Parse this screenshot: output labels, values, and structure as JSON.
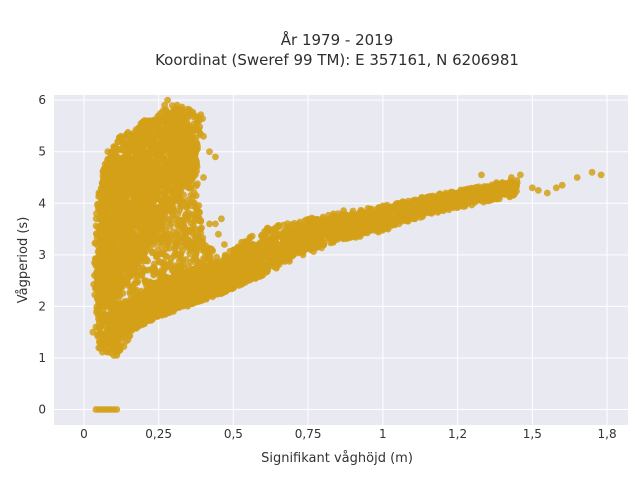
{
  "chart_data": {
    "type": "scatter",
    "title": [
      "År 1979 - 2019",
      "Koordinat (Sweref 99 TM): E 357161, N 6206981"
    ],
    "xlabel": "Signifikant våghöjd (m)",
    "ylabel": "Vågperiod (s)",
    "xlim": [
      -0.1,
      1.82
    ],
    "ylim": [
      -0.3,
      6.1
    ],
    "x_ticks": [
      0,
      0.25,
      0.5,
      0.75,
      1,
      1.25,
      1.5,
      1.75
    ],
    "x_tick_labels": [
      "0",
      "0,25",
      "0,5",
      "0,75",
      "1",
      "1,2",
      "1,5",
      "1,8"
    ],
    "y_ticks": [
      0,
      1,
      2,
      3,
      4,
      5,
      6
    ],
    "y_tick_labels": [
      "0",
      "1",
      "2",
      "3",
      "4",
      "5",
      "6"
    ],
    "grid": true,
    "colors": {
      "marker": "#d4a017",
      "plot_bg": "#e9e9f1",
      "grid": "#ffffff"
    },
    "series": [
      {
        "points": [
          [
            0.04,
            0
          ],
          [
            0.05,
            0
          ],
          [
            0.06,
            0
          ],
          [
            0.07,
            0
          ],
          [
            0.08,
            0
          ],
          [
            0.09,
            0
          ],
          [
            0.1,
            0
          ],
          [
            0.11,
            0
          ],
          [
            0.03,
            1.5
          ],
          [
            0.04,
            1.6
          ],
          [
            0.05,
            2.2
          ],
          [
            0.05,
            2.6
          ],
          [
            0.04,
            2.9
          ],
          [
            0.05,
            1.2
          ],
          [
            0.06,
            4.2
          ],
          [
            0.07,
            4.5
          ],
          [
            0.08,
            4.8
          ],
          [
            0.09,
            4.9
          ],
          [
            0.1,
            5.1
          ],
          [
            0.08,
            5.0
          ],
          [
            0.09,
            1.1
          ],
          [
            0.1,
            1.05
          ],
          [
            0.11,
            1.05
          ],
          [
            0.12,
            1.15
          ],
          [
            0.2,
            5.5
          ],
          [
            0.22,
            5.6
          ],
          [
            0.25,
            5.7
          ],
          [
            0.27,
            5.9
          ],
          [
            0.28,
            6.0
          ],
          [
            0.3,
            5.8
          ],
          [
            0.33,
            5.8
          ],
          [
            0.35,
            5.7
          ],
          [
            0.38,
            5.6
          ],
          [
            0.4,
            5.3
          ],
          [
            0.42,
            5.0
          ],
          [
            0.44,
            4.9
          ],
          [
            0.4,
            4.5
          ],
          [
            0.42,
            3.6
          ],
          [
            0.44,
            3.6
          ],
          [
            0.46,
            3.7
          ],
          [
            0.47,
            3.2
          ],
          [
            0.45,
            3.4
          ],
          [
            0.38,
            3.4
          ],
          [
            0.5,
            3.0
          ],
          [
            0.55,
            3.1
          ],
          [
            0.6,
            3.3
          ],
          [
            0.65,
            3.4
          ],
          [
            0.7,
            3.5
          ],
          [
            0.75,
            3.6
          ],
          [
            0.8,
            3.7
          ],
          [
            0.85,
            3.8
          ],
          [
            0.9,
            3.85
          ],
          [
            0.95,
            3.9
          ],
          [
            1.0,
            3.95
          ],
          [
            1.05,
            4.0
          ],
          [
            1.1,
            4.05
          ],
          [
            1.15,
            4.1
          ],
          [
            1.2,
            4.15
          ],
          [
            1.25,
            4.2
          ],
          [
            1.3,
            4.25
          ],
          [
            1.35,
            4.3
          ],
          [
            1.38,
            4.4
          ],
          [
            1.4,
            4.4
          ],
          [
            1.43,
            4.5
          ],
          [
            1.46,
            4.55
          ],
          [
            1.5,
            4.3
          ],
          [
            1.52,
            4.25
          ],
          [
            1.55,
            4.2
          ],
          [
            1.58,
            4.3
          ],
          [
            1.6,
            4.35
          ],
          [
            1.65,
            4.5
          ],
          [
            1.7,
            4.6
          ],
          [
            1.73,
            4.55
          ],
          [
            1.33,
            4.55
          ],
          [
            0.5,
            2.4
          ],
          [
            0.45,
            2.3
          ],
          [
            0.4,
            2.2
          ],
          [
            0.35,
            2.1
          ],
          [
            0.3,
            2.0
          ],
          [
            0.25,
            1.9
          ],
          [
            0.2,
            1.8
          ],
          [
            0.15,
            1.7
          ],
          [
            0.55,
            2.6
          ],
          [
            0.6,
            2.8
          ],
          [
            0.7,
            3.0
          ],
          [
            0.8,
            3.2
          ],
          [
            0.9,
            3.4
          ],
          [
            1.0,
            3.5
          ]
        ]
      }
    ],
    "regions": [
      {
        "kind": "poly",
        "count": 2200,
        "pts": [
          [
            0.04,
            1.25
          ],
          [
            0.06,
            1.1
          ],
          [
            0.12,
            1.1
          ],
          [
            0.17,
            1.5
          ],
          [
            0.25,
            1.8
          ],
          [
            0.4,
            2.1
          ],
          [
            0.5,
            2.35
          ],
          [
            0.6,
            2.6
          ],
          [
            0.72,
            2.95
          ],
          [
            0.85,
            3.25
          ],
          [
            1.0,
            3.45
          ],
          [
            1.15,
            3.8
          ],
          [
            1.3,
            4.0
          ],
          [
            1.45,
            4.2
          ],
          [
            1.45,
            4.4
          ],
          [
            1.3,
            4.3
          ],
          [
            1.15,
            4.15
          ],
          [
            1.0,
            3.95
          ],
          [
            0.85,
            3.85
          ],
          [
            0.7,
            3.65
          ],
          [
            0.6,
            3.5
          ],
          [
            0.5,
            3.15
          ],
          [
            0.45,
            3.0
          ],
          [
            0.4,
            3.3
          ],
          [
            0.38,
            4.2
          ],
          [
            0.38,
            5.0
          ],
          [
            0.4,
            5.7
          ],
          [
            0.3,
            5.95
          ],
          [
            0.2,
            5.6
          ],
          [
            0.15,
            5.3
          ],
          [
            0.1,
            5.0
          ],
          [
            0.06,
            4.6
          ],
          [
            0.04,
            3.8
          ],
          [
            0.03,
            2.0
          ]
        ]
      },
      {
        "kind": "poly",
        "count": 1400,
        "pts": [
          [
            0.06,
            1.2
          ],
          [
            0.15,
            1.5
          ],
          [
            0.25,
            1.8
          ],
          [
            0.35,
            2.0
          ],
          [
            0.5,
            2.35
          ],
          [
            0.6,
            2.6
          ],
          [
            0.6,
            3.05
          ],
          [
            0.5,
            2.95
          ],
          [
            0.35,
            2.7
          ],
          [
            0.25,
            2.5
          ],
          [
            0.18,
            2.2
          ],
          [
            0.1,
            2.0
          ]
        ]
      },
      {
        "kind": "poly",
        "count": 1400,
        "pts": [
          [
            0.05,
            2.0
          ],
          [
            0.1,
            2.0
          ],
          [
            0.2,
            3.0
          ],
          [
            0.3,
            4.0
          ],
          [
            0.38,
            4.7
          ],
          [
            0.38,
            5.4
          ],
          [
            0.3,
            5.8
          ],
          [
            0.2,
            5.6
          ],
          [
            0.12,
            5.3
          ],
          [
            0.07,
            4.8
          ],
          [
            0.05,
            4.0
          ]
        ]
      },
      {
        "kind": "band",
        "count": 900,
        "x0": 0.5,
        "x1": 1.45,
        "lo": [
          [
            0.5,
            2.55
          ],
          [
            0.75,
            3.1
          ],
          [
            1.0,
            3.5
          ],
          [
            1.2,
            3.85
          ],
          [
            1.45,
            4.15
          ]
        ],
        "hi": [
          [
            0.5,
            3.1
          ],
          [
            0.75,
            3.6
          ],
          [
            1.0,
            3.95
          ],
          [
            1.2,
            4.2
          ],
          [
            1.45,
            4.45
          ]
        ]
      }
    ]
  }
}
